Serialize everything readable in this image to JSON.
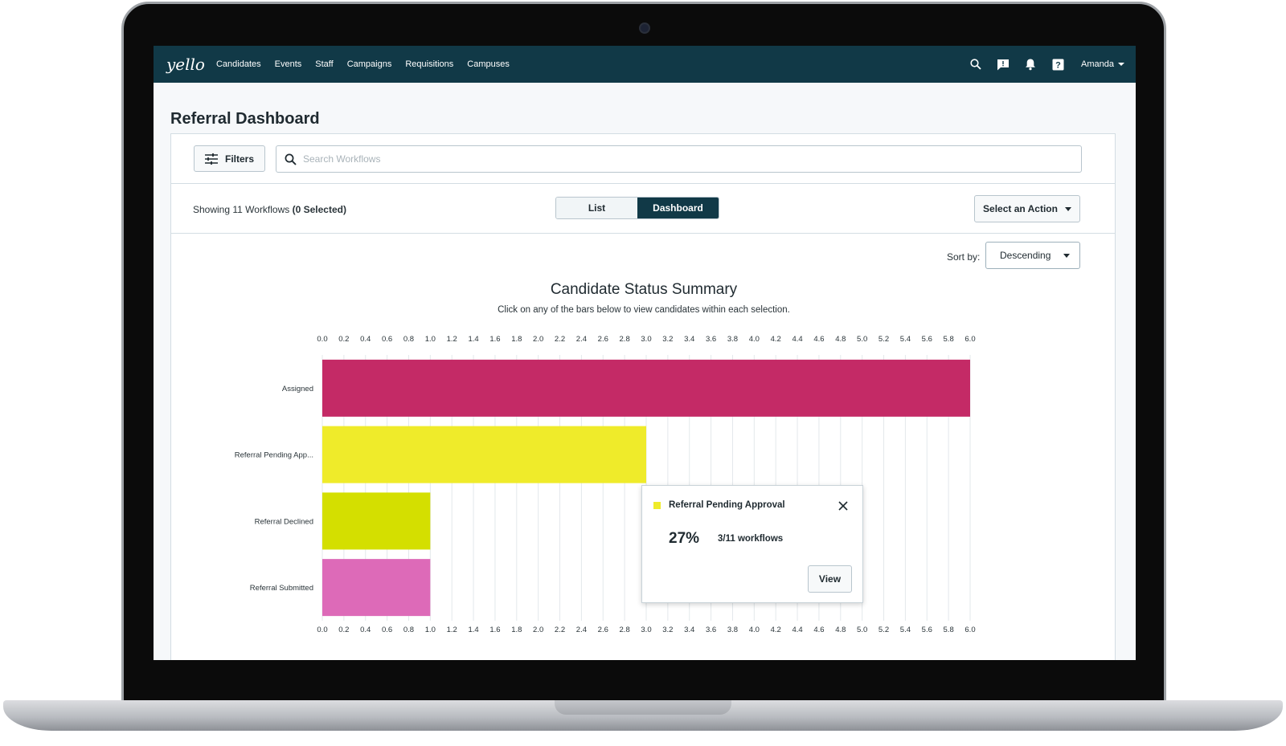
{
  "app": {
    "logo": "yello",
    "nav": [
      "Candidates",
      "Events",
      "Staff",
      "Campaigns",
      "Requisitions",
      "Campuses"
    ],
    "icons": [
      "search-icon",
      "chat-icon",
      "bell-icon",
      "help-icon"
    ],
    "user": "Amanda"
  },
  "page": {
    "title": "Referral Dashboard",
    "filters_label": "Filters",
    "search_placeholder": "Search Workflows",
    "showing_prefix": "Showing 11 Workflows ",
    "showing_selected": "(0 Selected)",
    "view_toggle": [
      "List",
      "Dashboard"
    ],
    "active_view": "Dashboard",
    "action_label": "Select an Action",
    "sort_label": "Sort by:",
    "sort_value": "Descending"
  },
  "colors": {
    "nav_bg": "#113947",
    "assigned": "#c42a66",
    "pending": "#efeb2a",
    "declined": "#d4df00",
    "submitted": "#dd6ab8"
  },
  "chart_data": {
    "type": "bar",
    "orientation": "horizontal",
    "title": "Candidate Status Summary",
    "subtitle": "Click on any of the bars below to view candidates within each selection.",
    "categories": [
      "Assigned",
      "Referral Pending App...",
      "Referral Declined",
      "Referral Submitted"
    ],
    "values": [
      6,
      3,
      1,
      1
    ],
    "colors": [
      "#c42a66",
      "#efeb2a",
      "#d4df00",
      "#dd6ab8"
    ],
    "xlim": [
      0,
      6
    ],
    "ticks": [
      "0.0",
      "0.2",
      "0.4",
      "0.6",
      "0.8",
      "1.0",
      "1.2",
      "1.4",
      "1.6",
      "1.8",
      "2.0",
      "2.2",
      "2.4",
      "2.6",
      "2.8",
      "3.0",
      "3.2",
      "3.4",
      "3.6",
      "3.8",
      "4.0",
      "4.2",
      "4.4",
      "4.6",
      "4.8",
      "5.0",
      "5.2",
      "5.4",
      "5.6",
      "5.8",
      "6.0"
    ],
    "axis_position": "top and bottom",
    "grid": true
  },
  "popup": {
    "title": "Referral Pending Approval",
    "percent": "27%",
    "count": "3/11 workflows",
    "view_label": "View",
    "color": "#efeb2a"
  }
}
